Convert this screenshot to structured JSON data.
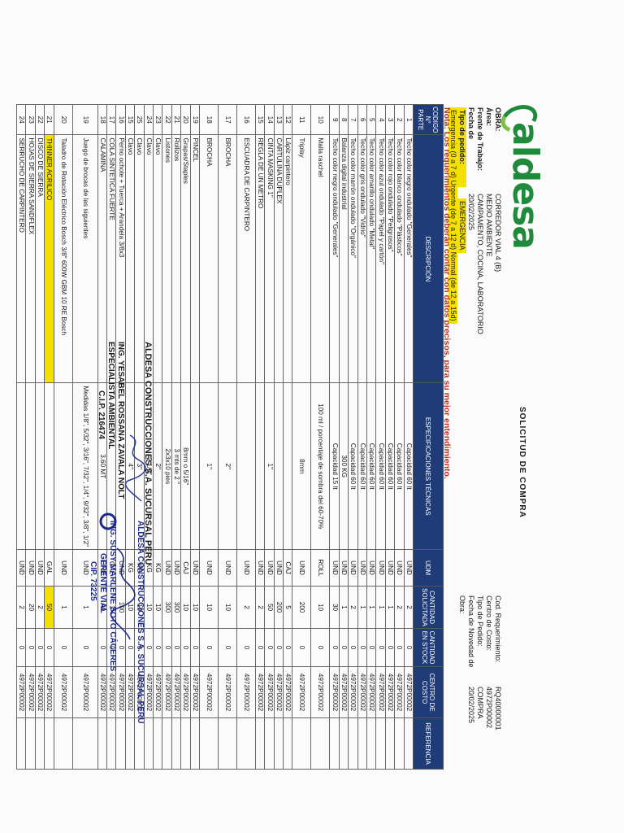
{
  "brand": {
    "name": "aldesa"
  },
  "title": "SOLICITUD DE COMPRA",
  "header": {
    "left": [
      {
        "label": "OBRA:",
        "value": "CORREDOR VIAL 4 (B)"
      },
      {
        "label": "Área:",
        "value": "MEDIO AMBIENTE"
      },
      {
        "label": "Frente de Trabajo:",
        "value": "CAMPAMENTO, COCINA, LABORATORIO"
      },
      {
        "label": "Fecha de Requerimiento:",
        "value": "20/02/2025"
      },
      {
        "label": "Tipo de pedido:",
        "value": "EMERGENCIA"
      },
      {
        "label": "Emergencia (0 a 7 d) Urgente (de 7 a 12 d) Normal (de 12 a 15d)",
        "value": ""
      }
    ],
    "right": [
      {
        "label": "Cod. Requerimiento:",
        "value": "RQ40000001"
      },
      {
        "label": "Centro de Costo:",
        "value": "4972P00002"
      },
      {
        "label": "Tipo de Pedido:",
        "value": "COMPRA"
      },
      {
        "label": "Fecha de Novedad de Obra:",
        "value": "20/02/2025"
      }
    ]
  },
  "note": "Nota: Los requerimientos deberán contar con datos precisos, para su mejor entendimiento.",
  "columns": [
    "CODIGO N° PARTE",
    "DESCRIPCIÓN",
    "ESPECIFICACIONES TÉCNICAS",
    "UDM",
    "CANTIDAD SOLICITADA",
    "CANTIDAD EN STOCK",
    "CENTRO DE COSTO",
    "REFERENCIA"
  ],
  "rows": [
    {
      "n": "1",
      "desc": "Techo color negro ondulado \"Generales\"",
      "spec": "Capacidad 60 lt",
      "udm": "UND",
      "qty": "2",
      "stock": "0",
      "cc": "4972P00002"
    },
    {
      "n": "2",
      "desc": "Techo color blanco ondulado \"Plásticos\"",
      "spec": "Capacidad 60 lt",
      "udm": "UND",
      "qty": "2",
      "stock": "0",
      "cc": "4972P00002"
    },
    {
      "n": "3",
      "desc": "Techo color rojo ondulado \"Peligrosos\"",
      "spec": "Capacidad 60 lt",
      "udm": "UND",
      "qty": "1",
      "stock": "0",
      "cc": "4972P00002"
    },
    {
      "n": "4",
      "desc": "Techo color azul ondulado \"Papel y cartón\"",
      "spec": "Capacidad 60 lt",
      "udm": "UND",
      "qty": "1",
      "stock": "0",
      "cc": "4972P00002"
    },
    {
      "n": "5",
      "desc": "Techo color amarillo ondulado \"Metal\"",
      "spec": "Capacidad 60 lt",
      "udm": "UND",
      "qty": "1",
      "stock": "0",
      "cc": "4972P00002"
    },
    {
      "n": "6",
      "desc": "Techo color gris ondulado \"Vidrio\"",
      "spec": "Capacidad 60 lt",
      "udm": "UND",
      "qty": "1",
      "stock": "0",
      "cc": "4972P00002"
    },
    {
      "n": "7",
      "desc": "Techo color marrón ondulado \"Orgánico\"",
      "spec": "Capacidad 60 lt",
      "udm": "UND",
      "qty": "2",
      "stock": "0",
      "cc": "4972P00002"
    },
    {
      "n": "8",
      "desc": "Balanza digital industrial",
      "spec": "300 KG",
      "udm": "UND",
      "qty": "1",
      "stock": "0",
      "cc": "4972P00002"
    },
    {
      "n": "9",
      "desc": "Techo color negro ondulado \"Generales\"",
      "spec": "Capacidad 15 lt",
      "udm": "UND",
      "qty": "30",
      "stock": "0",
      "cc": "4972P00002"
    },
    {
      "n": "10",
      "desc": "Malla raschel",
      "spec": "100 ml / porcentaje de sombra del 60-70%",
      "udm": "ROLL",
      "qty": "10",
      "stock": "0",
      "cc": "4972P00002",
      "cls": "tall"
    },
    {
      "n": "11",
      "desc": "Triplay",
      "spec": "8mm",
      "udm": "UND",
      "qty": "200",
      "stock": "0",
      "cc": "4972P00002",
      "cls": "tall"
    },
    {
      "n": "12",
      "desc": "Lápiz carpintero",
      "spec": "",
      "udm": "CAJ",
      "qty": "5",
      "stock": "0",
      "cc": "4972P00002"
    },
    {
      "n": "13",
      "desc": "CARTULINA DUPLEX",
      "spec": "",
      "udm": "UND",
      "qty": "200",
      "stock": "0",
      "cc": "4972P00002"
    },
    {
      "n": "14",
      "desc": "CINTA MASKING 1\"",
      "spec": "1\"",
      "udm": "UND",
      "qty": "50",
      "stock": "0",
      "cc": "4972P00002"
    },
    {
      "n": "15",
      "desc": "REGLA DE UN METRO",
      "spec": "",
      "udm": "UND",
      "qty": "2",
      "stock": "0",
      "cc": "4972P00002"
    },
    {
      "n": "16",
      "desc": "ESCUADRA DE CARPINTERO",
      "spec": "",
      "udm": "UND",
      "qty": "2",
      "stock": "0",
      "cc": "4972P00002",
      "cls": "tall"
    },
    {
      "n": "17",
      "desc": "BROCHA",
      "spec": "2\"",
      "udm": "UND",
      "qty": "10",
      "stock": "0",
      "cc": "4972P00002",
      "cls": "tall"
    },
    {
      "n": "18",
      "desc": "BROCHA",
      "spec": "1\"",
      "udm": "UND",
      "qty": "10",
      "stock": "0",
      "cc": "4972P00002",
      "cls": "tall"
    },
    {
      "n": "19",
      "desc": "PINCEL",
      "spec": "",
      "udm": "UND",
      "qty": "10",
      "stock": "0",
      "cc": "4972P00002"
    },
    {
      "n": "20",
      "desc": "Grapas/Staples",
      "spec": "8mm o 5/16\"",
      "udm": "CAJ",
      "qty": "10",
      "stock": "0",
      "cc": "4972P00002"
    },
    {
      "n": "21",
      "desc": "Rollizos",
      "spec": "3 mts de 2 \"",
      "udm": "UND",
      "qty": "300",
      "stock": "0",
      "cc": "4972P00002"
    },
    {
      "n": "22",
      "desc": "Listones",
      "spec": "2x3x10 pies",
      "udm": "UND",
      "qty": "300",
      "stock": "0",
      "cc": "4972P00002"
    },
    {
      "n": "23",
      "desc": "Clavo",
      "spec": "2\"",
      "udm": "KG",
      "qty": "10",
      "stock": "0",
      "cc": "4972P00002"
    },
    {
      "n": "24",
      "desc": "Clavo",
      "spec": "2 1/2\"",
      "udm": "KG",
      "qty": "10",
      "stock": "0",
      "cc": "4972P00002"
    },
    {
      "n": "25",
      "desc": "Clavo",
      "spec": "3\"",
      "udm": "KG",
      "qty": "10",
      "stock": "0",
      "cc": "4972P00002"
    },
    {
      "n": "15",
      "desc": "Clavo",
      "spec": "4\"",
      "udm": "KG",
      "qty": "10",
      "stock": "0",
      "cc": "4972P00002"
    },
    {
      "n": "16",
      "desc": "Perno ochote + Tuerca + Arandela 3/8x3",
      "spec": "",
      "udm": "UND",
      "qty": "100",
      "stock": "0",
      "cc": "4972P00002"
    },
    {
      "n": "17",
      "desc": "COLA SINTETICA FUERTE",
      "spec": "",
      "udm": "GAL",
      "qty": "3",
      "stock": "0",
      "cc": "4972P00002"
    },
    {
      "n": "18",
      "desc": "CALAMINA",
      "spec": "3.60 MT",
      "udm": "UND",
      "qty": "40",
      "stock": "0",
      "cc": "4972P00002"
    },
    {
      "n": "19",
      "desc": "Juego de brocas de las siguientes",
      "spec": "Medidas 1/8\", 5/32\", 3/16\", 7/32\", 1/4\", 9/32\", 3/8\", 1/2\"",
      "udm": "UND",
      "qty": "1",
      "stock": "0",
      "cc": "4972P00002",
      "cls": "xtall"
    },
    {
      "n": "20",
      "desc": "Taladro de Rotación Eléctrico Bosch 3/8\" 600W GBM 10 RE Bosch",
      "spec": "",
      "udm": "UND",
      "qty": "1",
      "stock": "0",
      "cc": "4972P00002",
      "cls": "tall"
    },
    {
      "n": "21",
      "desc": "THINNER ACRILICO",
      "spec": "",
      "udm": "GAL",
      "qty": "50",
      "stock": "0",
      "cc": "4972P00002",
      "hl": true
    },
    {
      "n": "22",
      "desc": "DISCO DE SIERRA",
      "spec": "",
      "udm": "UND",
      "qty": "2",
      "stock": "0",
      "cc": "4972P00002"
    },
    {
      "n": "23",
      "desc": "HOJAS DE SIERRA SANDFLEX",
      "spec": "",
      "udm": "UND",
      "qty": "20",
      "stock": "0",
      "cc": "4972P00002"
    },
    {
      "n": "24",
      "desc": "SERRUCHO DE CARPINTERO",
      "spec": "",
      "udm": "UND",
      "qty": "2",
      "stock": "0",
      "cc": "4972P00002"
    }
  ],
  "stamp_left": {
    "company": "ALDESA CONSTRUCCIONES S.A. SUCURSAL PERU",
    "name": "ING. YESABEL ROSSANA ZAVALA NOLT",
    "role": "ESPECIALISTA AMBIENTAL",
    "cip": "C.I.P. 216474"
  },
  "stamp_right": {
    "company": "ALDESA CONSTRUCCIONES S.A. SUCURSAL PERU",
    "name": "ING. SUSY MARLENE SOTO CÁCERES",
    "role": "GERENTE VIAL",
    "cip": "CIP. 73225"
  }
}
